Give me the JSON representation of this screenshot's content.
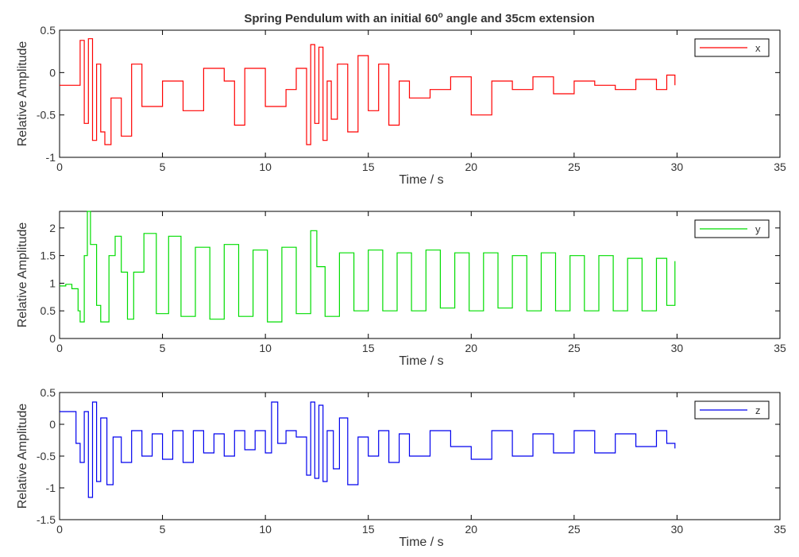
{
  "figure": {
    "title_main": "Spring Pendulum with an initial 60",
    "title_sup": "o",
    "title_rest": " angle and 35cm extension"
  },
  "chart_data": [
    {
      "type": "line",
      "series": [
        {
          "name": "x",
          "color": "#ff0000"
        }
      ],
      "xlabel": "Time / s",
      "ylabel": "Relative Amplitude",
      "xlim": [
        0,
        35
      ],
      "ylim": [
        -1,
        0.5
      ],
      "xticks": [
        "0",
        "5",
        "10",
        "15",
        "20",
        "25",
        "30",
        "35"
      ],
      "yticks": [
        "-1",
        "-0.5",
        "0",
        "0.5"
      ],
      "legend": "top-right",
      "grid": false,
      "x": [
        0,
        0.8,
        1.0,
        1.2,
        1.4,
        1.6,
        1.8,
        2.0,
        2.2,
        2.5,
        3.0,
        3.5,
        4.0,
        5.0,
        6.0,
        7.0,
        8.0,
        8.5,
        9.0,
        10.0,
        11.0,
        11.5,
        12.0,
        12.2,
        12.4,
        12.6,
        12.8,
        13.0,
        13.2,
        13.5,
        14.0,
        14.5,
        15.0,
        15.5,
        16.0,
        16.5,
        17.0,
        18.0,
        19.0,
        20.0,
        21.0,
        22.0,
        23.0,
        24.0,
        25.0,
        26.0,
        27.0,
        28.0,
        29.0,
        29.5,
        29.9
      ],
      "y": [
        -0.15,
        -0.15,
        0.38,
        -0.6,
        0.4,
        -0.8,
        0.1,
        -0.7,
        -0.85,
        -0.3,
        -0.75,
        0.1,
        -0.4,
        -0.1,
        -0.45,
        0.05,
        -0.1,
        -0.62,
        0.05,
        -0.4,
        -0.2,
        0.05,
        -0.85,
        0.33,
        -0.6,
        0.3,
        -0.8,
        -0.1,
        -0.55,
        0.1,
        -0.7,
        0.2,
        -0.45,
        0.1,
        -0.62,
        -0.1,
        -0.3,
        -0.2,
        -0.05,
        -0.5,
        -0.1,
        -0.2,
        -0.05,
        -0.25,
        -0.1,
        -0.15,
        -0.2,
        -0.08,
        -0.2,
        -0.03,
        -0.15
      ]
    },
    {
      "type": "line",
      "series": [
        {
          "name": "y",
          "color": "#00dd00"
        }
      ],
      "xlabel": "Time / s",
      "ylabel": "Relative Amplitude",
      "xlim": [
        0,
        35
      ],
      "ylim": [
        0,
        2.3
      ],
      "xticks": [
        "0",
        "5",
        "10",
        "15",
        "20",
        "25",
        "30",
        "35"
      ],
      "yticks": [
        "0",
        "0.5",
        "1",
        "1.5",
        "2"
      ],
      "legend": "top-right",
      "grid": false,
      "x": [
        0,
        0.3,
        0.6,
        0.9,
        1.0,
        1.2,
        1.35,
        1.5,
        1.8,
        2.0,
        2.4,
        2.7,
        3.0,
        3.3,
        3.6,
        4.1,
        4.7,
        5.3,
        5.9,
        6.6,
        7.3,
        8.0,
        8.7,
        9.4,
        10.1,
        10.8,
        11.5,
        12.2,
        12.5,
        12.9,
        13.6,
        14.3,
        15.0,
        15.7,
        16.4,
        17.1,
        17.8,
        18.5,
        19.2,
        19.9,
        20.6,
        21.3,
        22.0,
        22.7,
        23.4,
        24.1,
        24.8,
        25.5,
        26.2,
        26.9,
        27.6,
        28.3,
        29.0,
        29.5,
        29.9
      ],
      "y": [
        0.95,
        0.98,
        0.9,
        0.5,
        0.3,
        1.5,
        2.3,
        1.7,
        0.6,
        0.3,
        1.5,
        1.85,
        1.2,
        0.35,
        1.2,
        1.9,
        0.45,
        1.85,
        0.4,
        1.65,
        0.35,
        1.7,
        0.4,
        1.6,
        0.3,
        1.65,
        0.45,
        1.95,
        1.3,
        0.4,
        1.55,
        0.5,
        1.6,
        0.5,
        1.55,
        0.5,
        1.6,
        0.55,
        1.55,
        0.5,
        1.55,
        0.55,
        1.5,
        0.5,
        1.55,
        0.5,
        1.5,
        0.5,
        1.5,
        0.5,
        1.45,
        0.5,
        1.45,
        0.6,
        1.4
      ]
    },
    {
      "type": "line",
      "series": [
        {
          "name": "z",
          "color": "#0000ee"
        }
      ],
      "xlabel": "Time / s",
      "ylabel": "Relative Amplitude",
      "xlim": [
        0,
        35
      ],
      "ylim": [
        -1.5,
        0.5
      ],
      "xticks": [
        "0",
        "5",
        "10",
        "15",
        "20",
        "25",
        "30",
        "35"
      ],
      "yticks": [
        "-1.5",
        "-1",
        "-0.5",
        "0",
        "0.5"
      ],
      "legend": "top-right",
      "grid": false,
      "x": [
        0,
        0.6,
        0.8,
        1.0,
        1.2,
        1.4,
        1.6,
        1.8,
        2.0,
        2.3,
        2.6,
        3.0,
        3.5,
        4.0,
        4.5,
        5.0,
        5.5,
        6.0,
        6.5,
        7.0,
        7.5,
        8.0,
        8.5,
        9.0,
        9.5,
        10.0,
        10.3,
        10.6,
        11.0,
        11.5,
        12.0,
        12.2,
        12.4,
        12.6,
        12.8,
        13.0,
        13.3,
        13.6,
        14.0,
        14.5,
        15.0,
        15.5,
        16.0,
        16.5,
        17.0,
        18.0,
        19.0,
        20.0,
        21.0,
        22.0,
        23.0,
        24.0,
        25.0,
        26.0,
        27.0,
        28.0,
        29.0,
        29.5,
        29.9
      ],
      "y": [
        0.2,
        0.2,
        -0.3,
        -0.6,
        0.2,
        -1.15,
        0.35,
        -0.9,
        0.1,
        -0.95,
        -0.2,
        -0.6,
        -0.1,
        -0.5,
        -0.15,
        -0.55,
        -0.1,
        -0.6,
        -0.1,
        -0.45,
        -0.15,
        -0.5,
        -0.1,
        -0.4,
        -0.1,
        -0.45,
        0.35,
        -0.3,
        -0.1,
        -0.2,
        -0.8,
        0.35,
        -0.85,
        0.3,
        -0.9,
        -0.1,
        -0.7,
        0.1,
        -0.95,
        -0.2,
        -0.5,
        -0.1,
        -0.6,
        -0.15,
        -0.5,
        -0.1,
        -0.35,
        -0.55,
        -0.1,
        -0.5,
        -0.15,
        -0.45,
        -0.1,
        -0.45,
        -0.15,
        -0.35,
        -0.1,
        -0.3,
        -0.38
      ]
    }
  ]
}
